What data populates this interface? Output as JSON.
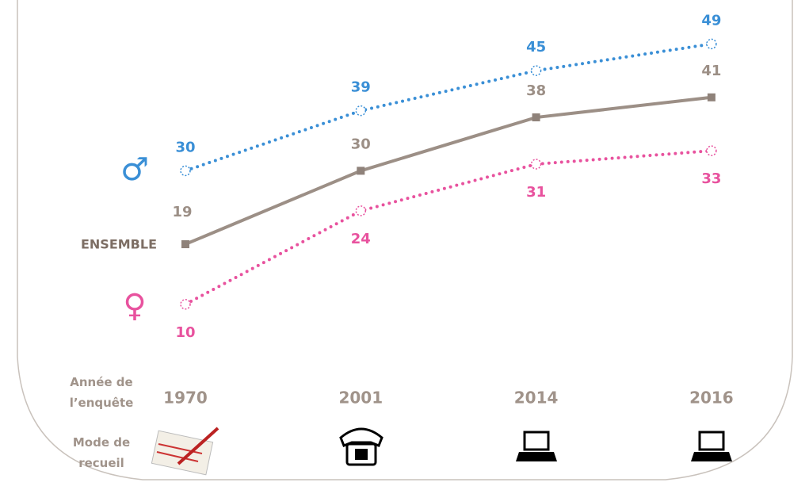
{
  "chart_data": {
    "type": "line",
    "categories": [
      "1970",
      "2001",
      "2014",
      "2016"
    ],
    "x_axis_label": "Année de l’enquête",
    "mode_label": "Mode de recueil",
    "series": [
      {
        "name": "♂",
        "color": "#3a8fd6",
        "style": "dotted",
        "values": [
          30,
          39,
          45,
          49
        ]
      },
      {
        "name": "ENSEMBLE",
        "color": "#9c8f86",
        "style": "solid",
        "values": [
          19,
          30,
          38,
          41
        ]
      },
      {
        "name": "♀",
        "color": "#e8529e",
        "style": "dotted",
        "values": [
          10,
          24,
          31,
          33
        ]
      }
    ]
  }
}
